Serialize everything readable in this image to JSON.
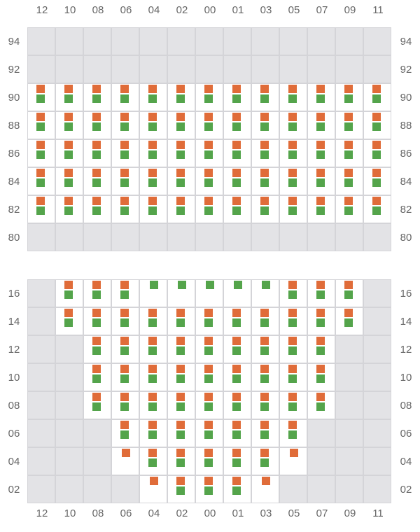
{
  "chart_data": {
    "type": "heatmap",
    "columns": [
      "12",
      "10",
      "08",
      "06",
      "04",
      "02",
      "00",
      "01",
      "03",
      "05",
      "07",
      "09",
      "11"
    ],
    "legend_codes": {
      "B": "orange and green markers",
      "O": "orange marker only",
      "G": "green marker only",
      "-": "active cell, no markers",
      "x": "inactive cell"
    },
    "colors": {
      "orange": "#e06c39",
      "green": "#54a44b",
      "inactive": "#e3e3e6",
      "active": "#ffffff",
      "grid": "#d4d4d8"
    },
    "panels": [
      {
        "rows": [
          {
            "label": "94",
            "cells": [
              "x",
              "x",
              "x",
              "x",
              "x",
              "x",
              "x",
              "x",
              "x",
              "x",
              "x",
              "x",
              "x"
            ]
          },
          {
            "label": "92",
            "cells": [
              "x",
              "x",
              "x",
              "x",
              "x",
              "x",
              "x",
              "x",
              "x",
              "x",
              "x",
              "x",
              "x"
            ]
          },
          {
            "label": "90",
            "cells": [
              "B",
              "B",
              "B",
              "B",
              "B",
              "B",
              "B",
              "B",
              "B",
              "B",
              "B",
              "B",
              "B"
            ]
          },
          {
            "label": "88",
            "cells": [
              "B",
              "B",
              "B",
              "B",
              "B",
              "B",
              "B",
              "B",
              "B",
              "B",
              "B",
              "B",
              "B"
            ]
          },
          {
            "label": "86",
            "cells": [
              "B",
              "B",
              "B",
              "B",
              "B",
              "B",
              "B",
              "B",
              "B",
              "B",
              "B",
              "B",
              "B"
            ]
          },
          {
            "label": "84",
            "cells": [
              "B",
              "B",
              "B",
              "B",
              "B",
              "B",
              "B",
              "B",
              "B",
              "B",
              "B",
              "B",
              "B"
            ]
          },
          {
            "label": "82",
            "cells": [
              "B",
              "B",
              "B",
              "B",
              "B",
              "B",
              "B",
              "B",
              "B",
              "B",
              "B",
              "B",
              "B"
            ]
          },
          {
            "label": "80",
            "cells": [
              "x",
              "x",
              "x",
              "x",
              "x",
              "x",
              "x",
              "x",
              "x",
              "x",
              "x",
              "x",
              "x"
            ]
          }
        ]
      },
      {
        "rows": [
          {
            "label": "16",
            "cells": [
              "x",
              "B",
              "B",
              "B",
              "G",
              "G",
              "G",
              "G",
              "G",
              "B",
              "B",
              "B",
              "x"
            ]
          },
          {
            "label": "14",
            "cells": [
              "x",
              "B",
              "B",
              "B",
              "B",
              "B",
              "B",
              "B",
              "B",
              "B",
              "B",
              "B",
              "x"
            ]
          },
          {
            "label": "12",
            "cells": [
              "x",
              "x",
              "B",
              "B",
              "B",
              "B",
              "B",
              "B",
              "B",
              "B",
              "B",
              "x",
              "x"
            ]
          },
          {
            "label": "10",
            "cells": [
              "x",
              "x",
              "B",
              "B",
              "B",
              "B",
              "B",
              "B",
              "B",
              "B",
              "B",
              "x",
              "x"
            ]
          },
          {
            "label": "08",
            "cells": [
              "x",
              "x",
              "B",
              "B",
              "B",
              "B",
              "B",
              "B",
              "B",
              "B",
              "B",
              "x",
              "x"
            ]
          },
          {
            "label": "06",
            "cells": [
              "x",
              "x",
              "x",
              "B",
              "B",
              "B",
              "B",
              "B",
              "B",
              "B",
              "x",
              "x",
              "x"
            ]
          },
          {
            "label": "04",
            "cells": [
              "x",
              "x",
              "x",
              "O",
              "B",
              "B",
              "B",
              "B",
              "B",
              "O",
              "x",
              "x",
              "x"
            ]
          },
          {
            "label": "02",
            "cells": [
              "x",
              "x",
              "x",
              "x",
              "O",
              "B",
              "B",
              "B",
              "O",
              "x",
              "x",
              "x",
              "x"
            ]
          }
        ]
      }
    ]
  }
}
